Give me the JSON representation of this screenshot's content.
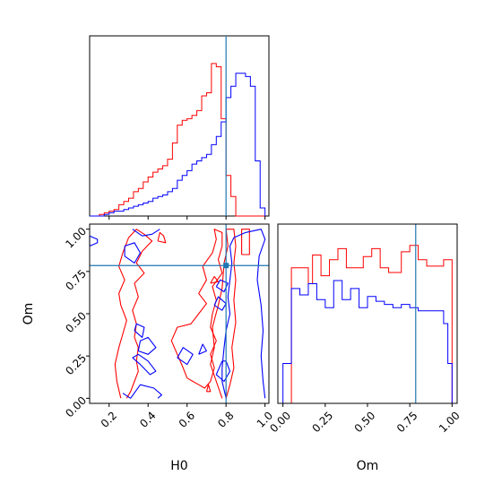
{
  "chart_data": {
    "type": "corner",
    "params": [
      "H0",
      "Om"
    ],
    "truth": {
      "H0": 0.8,
      "Om": 0.785
    },
    "colors": {
      "series_a": "#ff0000",
      "series_b": "#0000ff",
      "truth": "#1f77b4"
    },
    "h0_hist": {
      "type": "histogram",
      "xlim": [
        0.1,
        1.02
      ],
      "edges": [
        0.1,
        0.125,
        0.15,
        0.175,
        0.2,
        0.225,
        0.25,
        0.275,
        0.3,
        0.325,
        0.35,
        0.375,
        0.4,
        0.425,
        0.45,
        0.475,
        0.5,
        0.525,
        0.55,
        0.575,
        0.6,
        0.625,
        0.65,
        0.675,
        0.7,
        0.725,
        0.75,
        0.775,
        0.8,
        0.825,
        0.85,
        0.875,
        0.9,
        0.925,
        0.95,
        0.975,
        1.0
      ],
      "series": [
        {
          "color": "red",
          "counts": [
            0,
            0,
            0.01,
            0.02,
            0.03,
            0.04,
            0.07,
            0.09,
            0.11,
            0.15,
            0.17,
            0.21,
            0.24,
            0.27,
            0.29,
            0.31,
            0.35,
            0.45,
            0.56,
            0.59,
            0.6,
            0.62,
            0.65,
            0.74,
            0.76,
            0.94,
            0.92,
            0.6,
            0.25,
            0.12,
            0,
            0,
            0,
            0,
            0,
            0
          ]
        },
        {
          "color": "blue",
          "counts": [
            0,
            0,
            0,
            0.01,
            0.02,
            0.03,
            0.03,
            0.04,
            0.05,
            0.06,
            0.07,
            0.08,
            0.09,
            0.11,
            0.12,
            0.13,
            0.15,
            0.17,
            0.22,
            0.25,
            0.28,
            0.32,
            0.34,
            0.36,
            0.38,
            0.44,
            0.49,
            0.58,
            0.73,
            0.8,
            0.88,
            0.88,
            0.86,
            0.8,
            0.34,
            0.05
          ]
        }
      ]
    },
    "om_hist": {
      "type": "histogram",
      "xlim": [
        -0.03,
        1.03
      ],
      "x_tick_labels": [
        "0.00",
        "0.25",
        "0.50",
        "0.75",
        "1.00"
      ],
      "edges": [
        0.0,
        0.025,
        0.05,
        0.075,
        0.1,
        0.125,
        0.15,
        0.175,
        0.2,
        0.225,
        0.25,
        0.275,
        0.3,
        0.325,
        0.35,
        0.375,
        0.4,
        0.425,
        0.45,
        0.475,
        0.5,
        0.525,
        0.55,
        0.575,
        0.6,
        0.625,
        0.65,
        0.675,
        0.7,
        0.725,
        0.75,
        0.775,
        0.8,
        0.825,
        0.85,
        0.875,
        0.9,
        0.925,
        0.95,
        0.975,
        1.0
      ],
      "series": [
        {
          "color": "red",
          "counts": [
            0,
            0,
            0.85,
            0.85,
            0.85,
            0.85,
            0.75,
            0.93,
            0.93,
            0.8,
            0.8,
            0.9,
            0.9,
            0.97,
            0.97,
            0.85,
            0.85,
            0.85,
            0.85,
            0.92,
            0.92,
            0.97,
            0.97,
            0.85,
            0.85,
            0.82,
            0.82,
            0.82,
            0.95,
            0.95,
            0.99,
            0.99,
            0.9,
            0.9,
            0.86,
            0.86,
            0.86,
            0.86,
            0.9,
            0.9
          ]
        },
        {
          "color": "blue",
          "counts": [
            0.25,
            0.25,
            0.72,
            0.72,
            0.68,
            0.68,
            0.75,
            0.75,
            0.65,
            0.65,
            0.6,
            0.6,
            0.77,
            0.77,
            0.65,
            0.65,
            0.72,
            0.72,
            0.6,
            0.6,
            0.67,
            0.67,
            0.64,
            0.64,
            0.62,
            0.62,
            0.6,
            0.6,
            0.62,
            0.62,
            0.6,
            0.6,
            0.58,
            0.58,
            0.58,
            0.58,
            0.58,
            0.58,
            0.5,
            0.25
          ]
        }
      ]
    },
    "joint": {
      "type": "contour",
      "xlim": [
        0.1,
        1.02
      ],
      "ylim": [
        -0.03,
        1.03
      ],
      "x_tick_labels": [
        "0.2",
        "0.4",
        "0.6",
        "0.8",
        "1.0"
      ],
      "y_tick_labels": [
        "0.00",
        "0.25",
        "0.50",
        "0.75",
        "1.00"
      ],
      "series": [
        {
          "color": "red",
          "contours": [
            [
              [
                0.26,
                0.0
              ],
              [
                0.24,
                0.1
              ],
              [
                0.23,
                0.2
              ],
              [
                0.25,
                0.3
              ],
              [
                0.27,
                0.38
              ],
              [
                0.29,
                0.46
              ],
              [
                0.26,
                0.55
              ],
              [
                0.25,
                0.62
              ],
              [
                0.28,
                0.7
              ],
              [
                0.25,
                0.78
              ],
              [
                0.27,
                0.86
              ],
              [
                0.3,
                0.95
              ],
              [
                0.34,
                1.0
              ],
              [
                0.38,
                0.97
              ],
              [
                0.42,
                0.93
              ],
              [
                0.37,
                0.87
              ],
              [
                0.34,
                0.8
              ],
              [
                0.38,
                0.74
              ],
              [
                0.33,
                0.68
              ],
              [
                0.35,
                0.6
              ],
              [
                0.32,
                0.52
              ],
              [
                0.34,
                0.44
              ],
              [
                0.33,
                0.36
              ],
              [
                0.35,
                0.3
              ],
              [
                0.34,
                0.22
              ],
              [
                0.35,
                0.16
              ],
              [
                0.33,
                0.1
              ],
              [
                0.31,
                0.04
              ],
              [
                0.29,
                0.0
              ]
            ],
            [
              [
                0.45,
                0.93
              ],
              [
                0.49,
                0.92
              ],
              [
                0.48,
                0.96
              ],
              [
                0.46,
                0.98
              ],
              [
                0.45,
                0.93
              ]
            ],
            [
              [
                0.6,
                0.12
              ],
              [
                0.58,
                0.18
              ],
              [
                0.55,
                0.26
              ],
              [
                0.52,
                0.34
              ],
              [
                0.55,
                0.42
              ],
              [
                0.62,
                0.44
              ],
              [
                0.66,
                0.5
              ],
              [
                0.7,
                0.56
              ],
              [
                0.66,
                0.62
              ],
              [
                0.7,
                0.7
              ],
              [
                0.68,
                0.78
              ],
              [
                0.73,
                0.86
              ],
              [
                0.75,
                0.94
              ],
              [
                0.74,
                1.0
              ],
              [
                0.78,
                0.98
              ],
              [
                0.78,
                0.9
              ],
              [
                0.76,
                0.82
              ],
              [
                0.78,
                0.74
              ],
              [
                0.73,
                0.66
              ],
              [
                0.75,
                0.58
              ],
              [
                0.73,
                0.5
              ],
              [
                0.72,
                0.42
              ],
              [
                0.75,
                0.34
              ],
              [
                0.72,
                0.26
              ],
              [
                0.74,
                0.18
              ],
              [
                0.72,
                0.1
              ],
              [
                0.69,
                0.06
              ],
              [
                0.66,
                0.08
              ],
              [
                0.63,
                0.1
              ],
              [
                0.6,
                0.12
              ]
            ],
            [
              [
                0.72,
                0.68
              ],
              [
                0.76,
                0.69
              ],
              [
                0.74,
                0.72
              ],
              [
                0.72,
                0.68
              ]
            ],
            [
              [
                0.78,
                0.0
              ],
              [
                0.75,
                0.1
              ],
              [
                0.72,
                0.2
              ],
              [
                0.74,
                0.3
              ],
              [
                0.73,
                0.42
              ],
              [
                0.76,
                0.55
              ],
              [
                0.78,
                0.65
              ],
              [
                0.79,
                0.8
              ],
              [
                0.81,
                0.9
              ],
              [
                0.8,
                1.0
              ],
              [
                0.84,
                1.0
              ],
              [
                0.85,
                0.9
              ],
              [
                0.84,
                0.8
              ],
              [
                0.85,
                0.7
              ],
              [
                0.84,
                0.58
              ],
              [
                0.85,
                0.45
              ],
              [
                0.83,
                0.3
              ],
              [
                0.84,
                0.18
              ],
              [
                0.82,
                0.08
              ],
              [
                0.8,
                0.0
              ]
            ],
            [
              [
                0.88,
                0.85
              ],
              [
                0.92,
                0.85
              ],
              [
                0.92,
                1.0
              ],
              [
                0.88,
                1.0
              ],
              [
                0.88,
                0.85
              ]
            ],
            [
              [
                0.7,
                0.04
              ],
              [
                0.71,
                0.08
              ],
              [
                0.72,
                0.04
              ],
              [
                0.7,
                0.04
              ]
            ]
          ]
        },
        {
          "color": "blue",
          "contours": [
            [
              [
                0.14,
                0.94
              ],
              [
                0.1,
                0.96
              ],
              [
                0.1,
                0.9
              ],
              [
                0.14,
                0.92
              ],
              [
                0.14,
                0.94
              ]
            ],
            [
              [
                0.32,
                1.0
              ],
              [
                0.37,
                0.96
              ],
              [
                0.42,
                0.97
              ],
              [
                0.46,
                1.0
              ]
            ],
            [
              [
                0.28,
                0.9
              ],
              [
                0.33,
                0.92
              ],
              [
                0.36,
                0.86
              ],
              [
                0.33,
                0.8
              ],
              [
                0.28,
                0.84
              ],
              [
                0.28,
                0.9
              ]
            ],
            [
              [
                0.35,
                0.28
              ],
              [
                0.4,
                0.26
              ],
              [
                0.44,
                0.3
              ],
              [
                0.4,
                0.36
              ],
              [
                0.36,
                0.34
              ],
              [
                0.35,
                0.28
              ]
            ],
            [
              [
                0.32,
                0.24
              ],
              [
                0.36,
                0.2
              ],
              [
                0.41,
                0.14
              ],
              [
                0.44,
                0.16
              ],
              [
                0.4,
                0.22
              ],
              [
                0.35,
                0.26
              ],
              [
                0.32,
                0.24
              ]
            ],
            [
              [
                0.33,
                0.4
              ],
              [
                0.37,
                0.36
              ],
              [
                0.38,
                0.42
              ],
              [
                0.34,
                0.44
              ],
              [
                0.33,
                0.4
              ]
            ],
            [
              [
                0.27,
                0.03
              ],
              [
                0.31,
                0.0
              ],
              [
                0.36,
                0.08
              ],
              [
                0.43,
                0.06
              ],
              [
                0.47,
                0.02
              ],
              [
                0.45,
                0.0
              ]
            ],
            [
              [
                0.55,
                0.24
              ],
              [
                0.6,
                0.2
              ],
              [
                0.63,
                0.26
              ],
              [
                0.58,
                0.3
              ],
              [
                0.55,
                0.24
              ]
            ],
            [
              [
                0.66,
                0.26
              ],
              [
                0.7,
                0.28
              ],
              [
                0.68,
                0.32
              ],
              [
                0.66,
                0.26
              ]
            ],
            [
              [
                0.8,
                0.0
              ],
              [
                0.78,
                0.1
              ],
              [
                0.78,
                0.18
              ],
              [
                0.79,
                0.3
              ],
              [
                0.8,
                0.4
              ],
              [
                0.82,
                0.5
              ],
              [
                0.81,
                0.6
              ],
              [
                0.82,
                0.7
              ],
              [
                0.83,
                0.8
              ],
              [
                0.82,
                0.9
              ],
              [
                0.84,
                0.95
              ],
              [
                0.9,
                0.98
              ],
              [
                0.98,
                1.0
              ],
              [
                1.0,
                0.94
              ],
              [
                0.97,
                0.84
              ],
              [
                0.96,
                0.7
              ],
              [
                0.98,
                0.55
              ],
              [
                0.99,
                0.4
              ],
              [
                0.98,
                0.25
              ],
              [
                0.99,
                0.1
              ],
              [
                1.0,
                0.0
              ]
            ],
            [
              [
                0.74,
                0.55
              ],
              [
                0.78,
                0.52
              ],
              [
                0.8,
                0.56
              ],
              [
                0.76,
                0.6
              ],
              [
                0.74,
                0.55
              ]
            ],
            [
              [
                0.75,
                0.66
              ],
              [
                0.79,
                0.63
              ],
              [
                0.81,
                0.68
              ],
              [
                0.77,
                0.7
              ],
              [
                0.75,
                0.66
              ]
            ],
            [
              [
                0.78,
                0.22
              ],
              [
                0.75,
                0.14
              ],
              [
                0.79,
                0.1
              ],
              [
                0.82,
                0.16
              ],
              [
                0.8,
                0.22
              ],
              [
                0.78,
                0.22
              ]
            ]
          ]
        }
      ]
    }
  },
  "labels": {
    "joint_xlabel": "H0",
    "joint_ylabel": "Om",
    "om_xlabel": "Om"
  }
}
